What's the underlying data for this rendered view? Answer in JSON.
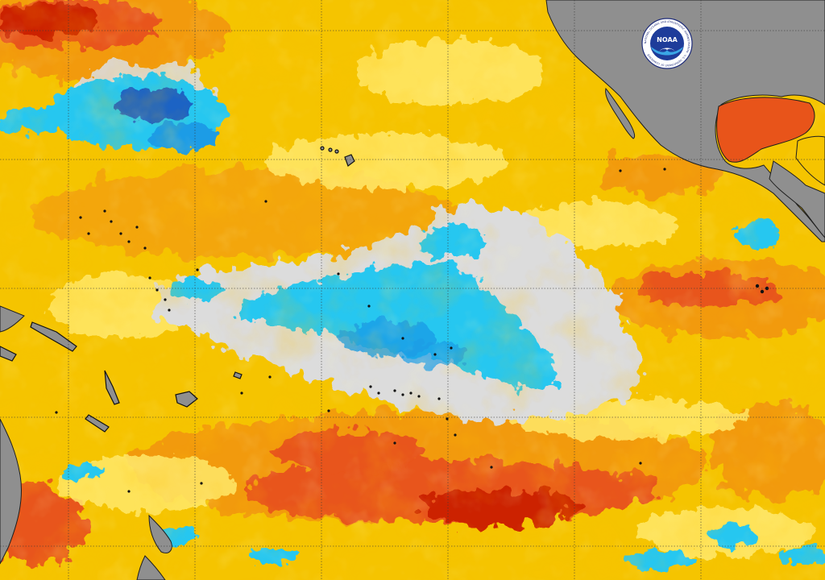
{
  "map": {
    "type": "sea-surface-temperature-anomaly",
    "region": "tropical-pacific-ocean",
    "landmasses": [
      "north-america-mexico",
      "gulf-of-mexico-coast",
      "central-america",
      "australia-east",
      "new-zealand",
      "papua-new-guinea",
      "solomon-islands",
      "hawaiian-islands",
      "pacific-island-chains"
    ],
    "gridlines": true,
    "colors": {
      "land": "#8f8f8f",
      "coast_outline": "#1e1e1e",
      "gridline": "#3a3a3a",
      "neutral": "#dcdcdc",
      "warm_light": "#ffe96a",
      "warm": "#f5c400",
      "warm_medium": "#f29a10",
      "warm_strong": "#e8541a",
      "warm_extreme": "#cc2200",
      "cool_light": "#27c7f0",
      "cool": "#1b9ce6",
      "cool_strong": "#1f63c4"
    }
  },
  "logo": {
    "icon": "noaa-logo",
    "text": "NOAA",
    "ring_text": "NATIONAL OCEANIC AND ATMOSPHERIC ADMINISTRATION · U.S. DEPARTMENT OF COMMERCE"
  }
}
